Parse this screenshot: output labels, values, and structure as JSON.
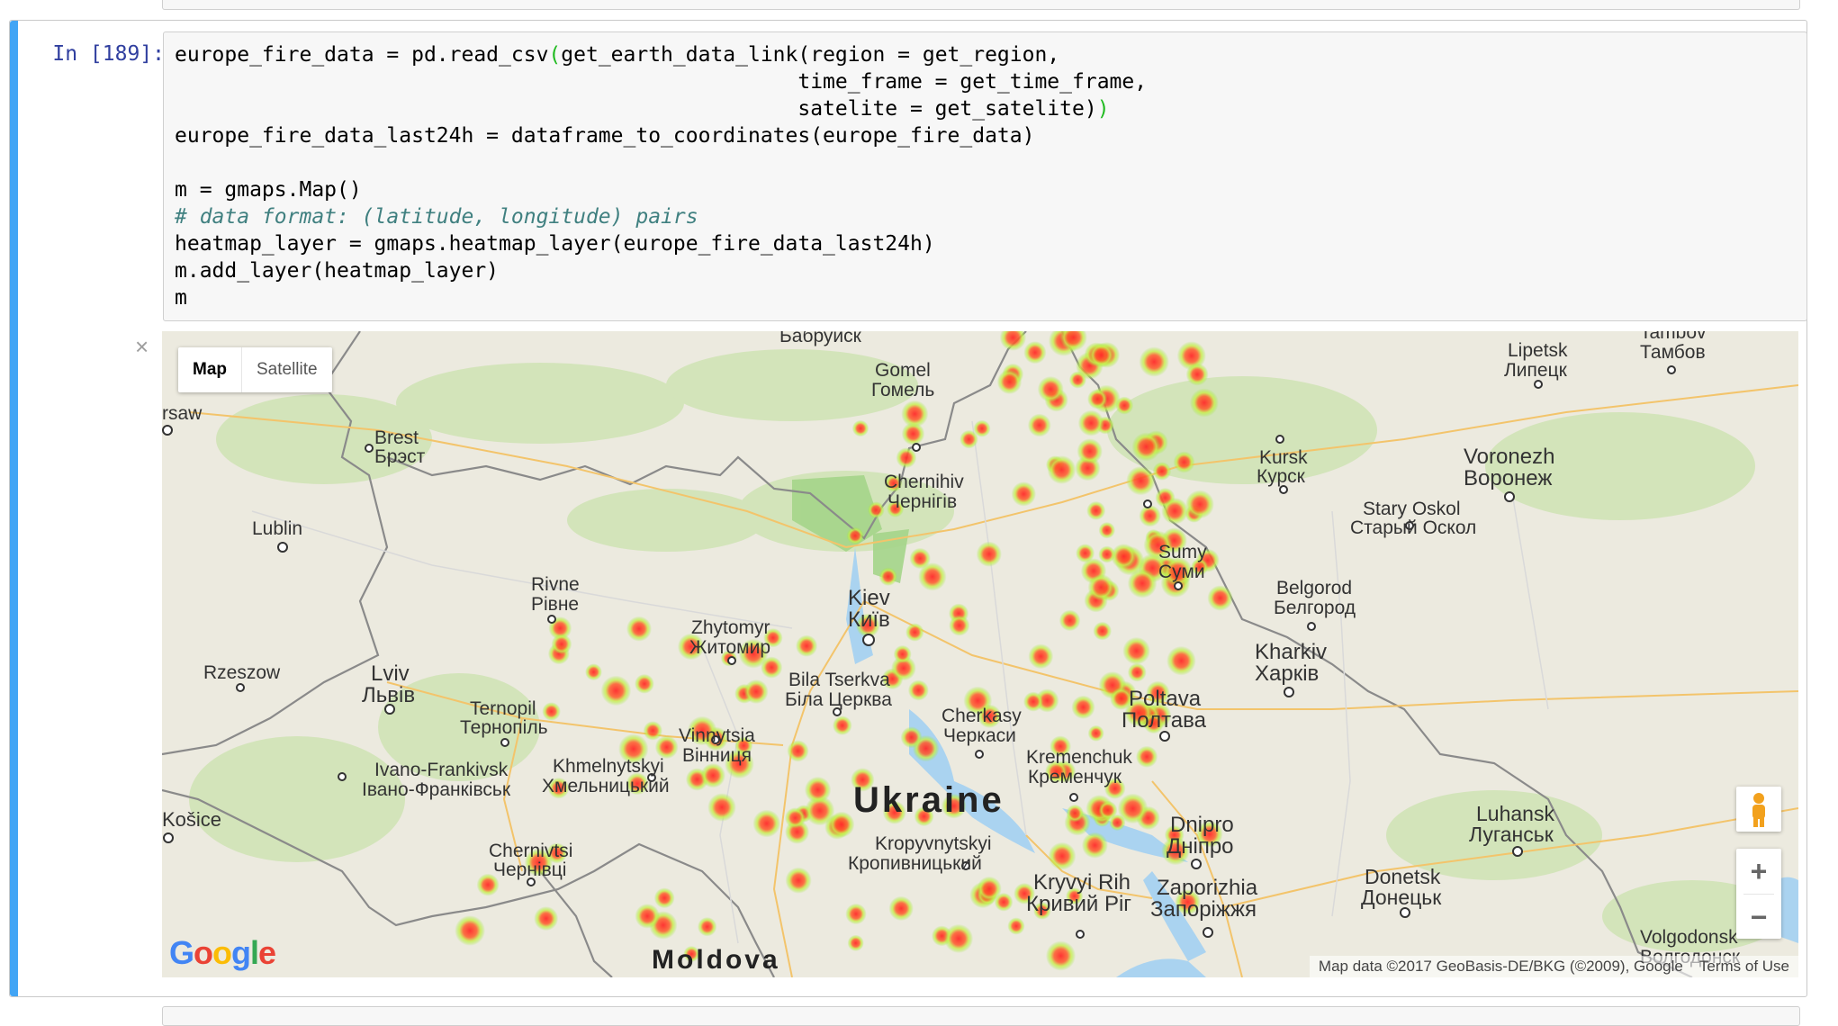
{
  "cell": {
    "prompt": "In [189]:",
    "code": {
      "line1a": "europe_fire_data = pd.read_csv",
      "line1b": "(",
      "line1c": "get_earth_data_link(region = get_region,",
      "line2": "                                                  time_frame = get_time_frame,",
      "line3a": "                                                  satelite = get_satelite)",
      "line3b": ")",
      "line4": "europe_fire_data_last24h = dataframe_to_coordinates(europe_fire_data)",
      "line5": "",
      "line6": "m = gmaps.Map()",
      "line7": "# data format: (latitude, longitude) pairs",
      "line8": "heatmap_layer = gmaps.heatmap_layer(europe_fire_data_last24h)",
      "line9": "m.add_layer(heatmap_layer)",
      "line10": "m"
    }
  },
  "output": {
    "close_glyph": "×",
    "map_type": {
      "map": "Map",
      "satellite": "Satellite"
    },
    "zoom_in": "+",
    "zoom_out": "−",
    "attribution": "Map data ©2017 GeoBasis-DE/BKG (©2009), Google",
    "terms": "Terms of Use",
    "logo": "Google",
    "cities": [
      {
        "id": "babruysk",
        "label": "Бабруйск"
      },
      {
        "id": "gomel",
        "label": "Gomel"
      },
      {
        "id": "gomel_ru",
        "label": "Гомель"
      },
      {
        "id": "warsaw",
        "label": "rsaw"
      },
      {
        "id": "brest",
        "label": "Brest"
      },
      {
        "id": "brest_ru",
        "label": "Брэст"
      },
      {
        "id": "lublin",
        "label": "Lublin"
      },
      {
        "id": "chernihiv",
        "label": "Chernihiv"
      },
      {
        "id": "chernihiv_ua",
        "label": "Чернігів"
      },
      {
        "id": "lipetsk",
        "label": "Lipetsk"
      },
      {
        "id": "lipetsk_ru",
        "label": "Липецк"
      },
      {
        "id": "tambov",
        "label": "Tambov"
      },
      {
        "id": "tambov_ru",
        "label": "Тамбов"
      },
      {
        "id": "kursk",
        "label": "Kursk"
      },
      {
        "id": "kursk_ru",
        "label": "Курск"
      },
      {
        "id": "voronezh",
        "label": "Voronezh"
      },
      {
        "id": "voronezh_ru",
        "label": "Воронеж"
      },
      {
        "id": "stary_oskol",
        "label": "Stary Oskol"
      },
      {
        "id": "stary_oskol_ru",
        "label": "Старый Оскол"
      },
      {
        "id": "sumy",
        "label": "Sumy"
      },
      {
        "id": "sumy_ua",
        "label": "Суми"
      },
      {
        "id": "belgorod",
        "label": "Belgorod"
      },
      {
        "id": "belgorod_ru",
        "label": "Белгород"
      },
      {
        "id": "rivne",
        "label": "Rivne"
      },
      {
        "id": "rivne_ua",
        "label": "Рівне"
      },
      {
        "id": "zhytomyr",
        "label": "Zhytomyr"
      },
      {
        "id": "zhytomyr_ua",
        "label": "Житомир"
      },
      {
        "id": "kiev",
        "label": "Kiev"
      },
      {
        "id": "kiev_ua",
        "label": "Київ"
      },
      {
        "id": "kharkiv",
        "label": "Kharkiv"
      },
      {
        "id": "kharkiv_ua",
        "label": "Харків"
      },
      {
        "id": "rzeszow",
        "label": "Rzeszow"
      },
      {
        "id": "lviv",
        "label": "Lviv"
      },
      {
        "id": "lviv_ua",
        "label": "Львів"
      },
      {
        "id": "bila_tserkva",
        "label": "Bila Tserkva"
      },
      {
        "id": "bila_tserkva_ua",
        "label": "Біла Церква"
      },
      {
        "id": "ternopil",
        "label": "Ternopil"
      },
      {
        "id": "ternopil_ua",
        "label": "Тернопіль"
      },
      {
        "id": "poltava",
        "label": "Poltava"
      },
      {
        "id": "poltava_ua",
        "label": "Полтава"
      },
      {
        "id": "cherkasy",
        "label": "Cherkasy"
      },
      {
        "id": "cherkasy_ua",
        "label": "Черкаси"
      },
      {
        "id": "vinnytsia",
        "label": "Vinnytsia"
      },
      {
        "id": "vinnytsia_ua",
        "label": "Вінниця"
      },
      {
        "id": "ivano_frankivsk",
        "label": "Ivano-Frankivsk"
      },
      {
        "id": "ivano_frankivsk_ua",
        "label": "Івано-Франківськ"
      },
      {
        "id": "khmelnytskyi",
        "label": "Khmelnytskyi"
      },
      {
        "id": "khmelnytskyi_ua",
        "label": "Хмельницький"
      },
      {
        "id": "kremenchuk",
        "label": "Kremenchuk"
      },
      {
        "id": "kremenchuk_ua",
        "label": "Кременчук"
      },
      {
        "id": "kosice",
        "label": "Košice"
      },
      {
        "id": "luhansk",
        "label": "Luhansk"
      },
      {
        "id": "luhansk_ua",
        "label": "Луганськ"
      },
      {
        "id": "dnipro",
        "label": "Dnipro"
      },
      {
        "id": "dnipro_ua",
        "label": "Дніпро"
      },
      {
        "id": "chernivtsi",
        "label": "Chernivtsi"
      },
      {
        "id": "chernivtsi_ua",
        "label": "Чернівці"
      },
      {
        "id": "kropyvnytskyi",
        "label": "Kropyvnytskyi"
      },
      {
        "id": "kropyvnytskyi_ua",
        "label": "Кропивницький"
      },
      {
        "id": "kryvyi_rih",
        "label": "Kryvyi Rih"
      },
      {
        "id": "kryvyi_rih_ua",
        "label": "Кривий Ріг"
      },
      {
        "id": "zaporizhia",
        "label": "Zaporizhia"
      },
      {
        "id": "zaporizhia_ua",
        "label": "Запоріжжя"
      },
      {
        "id": "donetsk",
        "label": "Donetsk"
      },
      {
        "id": "donetsk_ua",
        "label": "Донецьк"
      },
      {
        "id": "volgodonsk",
        "label": "Volgodonsk"
      },
      {
        "id": "volgodonsk_ru",
        "label": "Волгодонск"
      }
    ],
    "countries": [
      {
        "id": "ukraine",
        "label": "Ukraine"
      },
      {
        "id": "moldova",
        "label": "Moldova"
      }
    ]
  }
}
